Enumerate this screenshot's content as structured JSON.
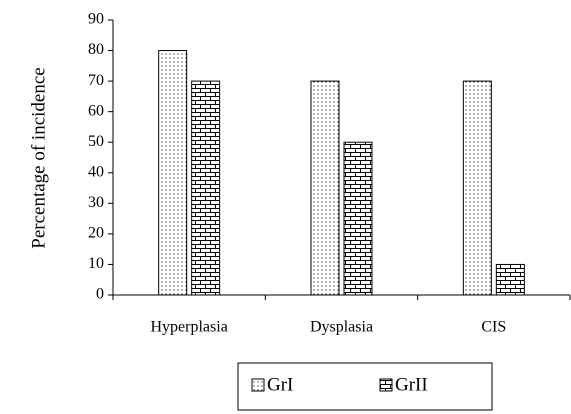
{
  "chart_data": {
    "type": "bar",
    "y_label": "Percentage of incidence",
    "categories": [
      "Hyperplasia",
      "Dysplasia",
      "CIS"
    ],
    "series": [
      {
        "name": "GrI",
        "color": "#000000",
        "pattern": "dots",
        "values": [
          80,
          70,
          70
        ]
      },
      {
        "name": "GrII",
        "color": "#000000",
        "pattern": "bricks",
        "values": [
          70,
          50,
          10
        ]
      }
    ],
    "ylim": [
      0,
      90
    ],
    "yticks": [
      0,
      10,
      20,
      30,
      40,
      50,
      60,
      70,
      80,
      90
    ]
  }
}
